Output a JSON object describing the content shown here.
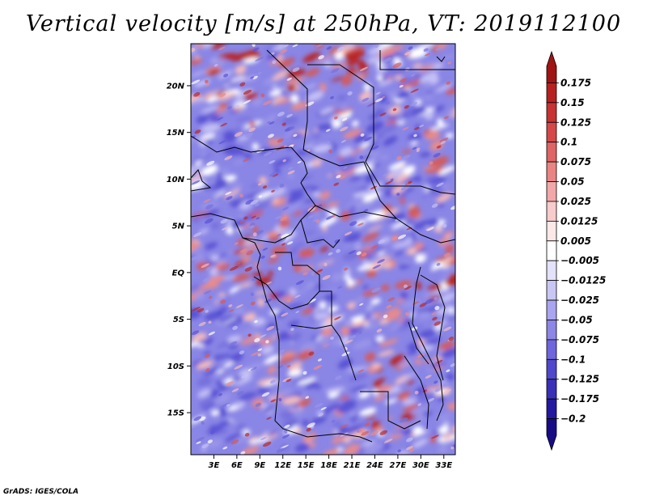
{
  "title": "Vertical velocity [m/s] at 250hPa, VT: 2019112100",
  "footer": "GrADS: IGES/COLA",
  "colors": {
    "neg_strong": "#2a1fa6",
    "neg_mid": "#7a74e0",
    "neg_light": "#b8b4f0",
    "neutral": "#ffffff",
    "pos_light": "#f4b4b4",
    "pos_mid": "#e06868",
    "pos_strong": "#a41818"
  },
  "chart_data": {
    "type": "heatmap",
    "variable": "Vertical velocity",
    "units": "m/s",
    "level": "250hPa",
    "valid_time": "2019112100",
    "x_axis": {
      "range": [
        0,
        34.5
      ],
      "tick_values": [
        3,
        6,
        9,
        12,
        15,
        18,
        21,
        24,
        27,
        30,
        33
      ],
      "tick_labels": [
        "3E",
        "6E",
        "9E",
        "12E",
        "15E",
        "18E",
        "21E",
        "24E",
        "27E",
        "30E",
        "33E"
      ]
    },
    "y_axis": {
      "range": [
        -19.5,
        24.5
      ],
      "tick_values": [
        20,
        15,
        10,
        5,
        0,
        -5,
        -10,
        -15
      ],
      "tick_labels": [
        "20N",
        "15N",
        "10N",
        "5N",
        "EQ",
        "5S",
        "10S",
        "15S"
      ]
    },
    "colorbar": {
      "levels": [
        0.175,
        0.15,
        0.125,
        0.1,
        0.075,
        0.05,
        0.025,
        0.0125,
        0.005,
        -0.005,
        -0.0125,
        -0.025,
        -0.05,
        -0.075,
        -0.1,
        -0.125,
        -0.175,
        -0.2
      ],
      "labels": [
        "0.175",
        "0.15",
        "0.125",
        "0.1",
        "0.075",
        "0.05",
        "0.025",
        "0.0125",
        "0.005",
        "−0.005",
        "−0.0125",
        "−0.025",
        "−0.05",
        "−0.075",
        "−0.1",
        "−0.125",
        "−0.175",
        "−0.2"
      ],
      "colors": [
        "#a01414",
        "#b82020",
        "#c83232",
        "#d64848",
        "#e06464",
        "#ea8484",
        "#f2a8a8",
        "#f8cccc",
        "#fde8e8",
        "#ffffff",
        "#e4e2fa",
        "#cac6f4",
        "#aaa5ee",
        "#8c86e6",
        "#6e66dc",
        "#5048cc",
        "#3a30b8",
        "#2418a0",
        "#180c86"
      ]
    },
    "field_description": "mottled positive/negative pattern over Central Africa"
  }
}
